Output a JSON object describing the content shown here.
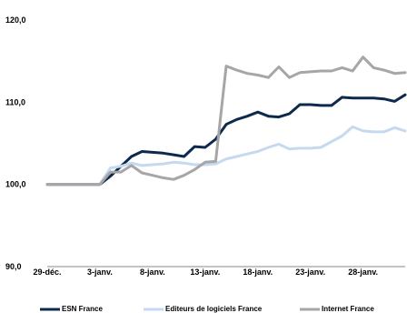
{
  "chart_data": {
    "type": "line",
    "title": "",
    "xlabel": "",
    "ylabel": "",
    "ylim": [
      90,
      120
    ],
    "yticks": [
      "90,0",
      "100,0",
      "110,0",
      "120,0"
    ],
    "ytick_values": [
      90,
      100,
      110,
      120
    ],
    "xtick_labels": [
      "29-déc.",
      "3-janv.",
      "8-janv.",
      "13-janv.",
      "18-janv.",
      "23-janv.",
      "28-janv."
    ],
    "xtick_values": [
      0,
      5,
      10,
      15,
      20,
      25,
      30
    ],
    "x_range": [
      0,
      34
    ],
    "grid": false,
    "legend_position": "bottom",
    "series": [
      {
        "name": "ESN France",
        "color": "#0d2a4e",
        "x": [
          0,
          1,
          2,
          3,
          4,
          5,
          6,
          7,
          8,
          9,
          10,
          11,
          12,
          13,
          14,
          15,
          16,
          17,
          18,
          19,
          20,
          21,
          22,
          23,
          24,
          25,
          26,
          27,
          28,
          29,
          30,
          31,
          32,
          33,
          34
        ],
        "values": [
          100.0,
          100.0,
          100.0,
          100.0,
          100.0,
          100.0,
          101.0,
          102.2,
          103.4,
          104.0,
          103.9,
          103.8,
          103.6,
          103.4,
          104.6,
          104.5,
          105.5,
          107.3,
          107.9,
          108.3,
          108.8,
          108.3,
          108.2,
          108.6,
          109.7,
          109.7,
          109.6,
          109.6,
          110.6,
          110.5,
          110.5,
          110.5,
          110.4,
          110.1,
          110.9
        ]
      },
      {
        "name": "Editeurs de logiciels France",
        "color": "#c5d9f1",
        "x": [
          0,
          1,
          2,
          3,
          4,
          5,
          6,
          7,
          8,
          9,
          10,
          11,
          12,
          13,
          14,
          15,
          16,
          17,
          18,
          19,
          20,
          21,
          22,
          23,
          24,
          25,
          26,
          27,
          28,
          29,
          30,
          31,
          32,
          33,
          34
        ],
        "values": [
          100.0,
          100.0,
          100.0,
          100.0,
          100.0,
          100.0,
          102.0,
          102.2,
          102.6,
          102.3,
          102.4,
          102.5,
          102.7,
          102.6,
          102.4,
          102.4,
          102.5,
          103.1,
          103.4,
          103.7,
          104.0,
          104.5,
          104.9,
          104.3,
          104.4,
          104.4,
          104.5,
          105.2,
          105.9,
          107.0,
          106.5,
          106.4,
          106.4,
          106.9,
          106.5
        ]
      },
      {
        "name": "Internet France",
        "color": "#a6a6a6",
        "x": [
          0,
          1,
          2,
          3,
          4,
          5,
          6,
          7,
          8,
          9,
          10,
          11,
          12,
          13,
          14,
          15,
          16,
          17,
          18,
          19,
          20,
          21,
          22,
          23,
          24,
          25,
          26,
          27,
          28,
          29,
          30,
          31,
          32,
          33,
          34
        ],
        "values": [
          100.0,
          100.0,
          100.0,
          100.0,
          100.0,
          100.0,
          101.5,
          101.5,
          102.3,
          101.4,
          101.1,
          100.8,
          100.6,
          101.1,
          101.8,
          102.7,
          102.8,
          114.4,
          113.9,
          113.5,
          113.3,
          113.0,
          114.3,
          113.0,
          113.6,
          113.7,
          113.8,
          113.8,
          114.2,
          113.8,
          115.5,
          114.2,
          113.9,
          113.5,
          113.6
        ]
      }
    ]
  }
}
